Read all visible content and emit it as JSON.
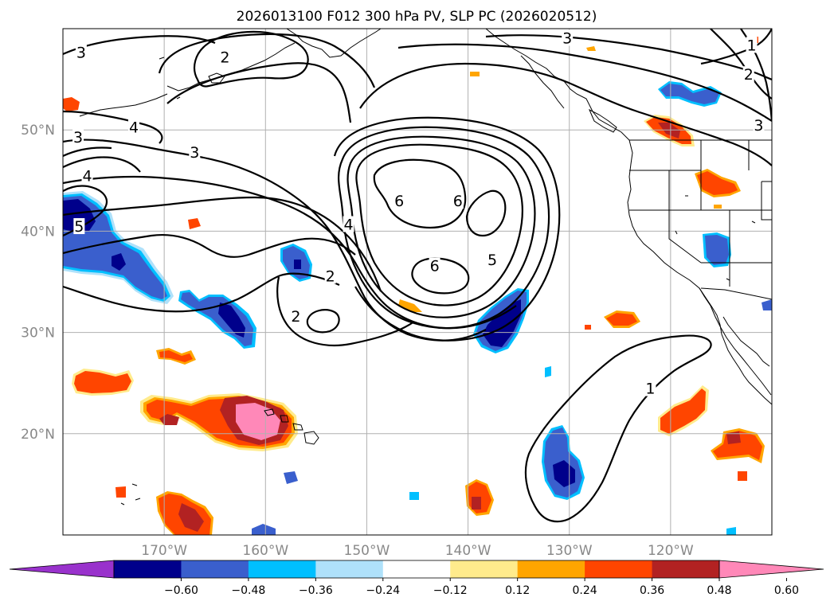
{
  "title": "2026013100 F012 300 hPa PV, SLP PC (2026020512)",
  "colors": {
    "frame": "#000000",
    "grid": "#b0b0b0",
    "coast": "#000000",
    "contour": "#000000",
    "axis_label": "#888888"
  },
  "chart_data": {
    "type": "map",
    "projection": "cylindrical",
    "lon_range": [
      -180,
      -110
    ],
    "lat_range": [
      10,
      60
    ],
    "lat_ticks": [
      {
        "lat": 50,
        "label": "50°N"
      },
      {
        "lat": 40,
        "label": "40°N"
      },
      {
        "lat": 30,
        "label": "30°N"
      },
      {
        "lat": 20,
        "label": "20°N"
      }
    ],
    "lon_ticks": [
      {
        "lon": -170,
        "label": "170°W"
      },
      {
        "lon": -160,
        "label": "160°W"
      },
      {
        "lon": -150,
        "label": "150°W"
      },
      {
        "lon": -140,
        "label": "140°W"
      },
      {
        "lon": -130,
        "label": "130°W"
      },
      {
        "lon": -120,
        "label": "120°W"
      }
    ],
    "colorbar": {
      "bins": [
        {
          "range": "< -0.60",
          "color": "#9932cc"
        },
        {
          "range": "-0.60 to -0.48",
          "color": "#00008b"
        },
        {
          "range": "-0.48 to -0.36",
          "color": "#3a5fcd"
        },
        {
          "range": "-0.36 to -0.24",
          "color": "#00bfff"
        },
        {
          "range": "-0.24 to -0.12",
          "color": "#afe1fa"
        },
        {
          "range": "-0.12 to 0.12",
          "color": "#ffffff"
        },
        {
          "range": "0.12 to 0.24",
          "color": "#ffeb8c"
        },
        {
          "range": "0.24 to 0.36",
          "color": "#ffa500"
        },
        {
          "range": "0.36 to 0.48",
          "color": "#ff4500"
        },
        {
          "range": "0.48 to 0.60",
          "color": "#b22222"
        },
        {
          "range": "> 0.60",
          "color": "#ff88b8"
        }
      ],
      "tick_labels": [
        "−0.60",
        "−0.48",
        "−0.36",
        "−0.24",
        "−0.12",
        "0.12",
        "0.24",
        "0.36",
        "0.48",
        "0.60"
      ]
    },
    "contour_labels": [
      {
        "text": "3",
        "lon": -178.2,
        "lat": 57.7
      },
      {
        "text": "2",
        "lon": -164.0,
        "lat": 57.2
      },
      {
        "text": "3",
        "lon": -130.2,
        "lat": 59.1
      },
      {
        "text": "1",
        "lon": -112.0,
        "lat": 58.4
      },
      {
        "text": "2",
        "lon": -112.3,
        "lat": 55.5
      },
      {
        "text": "3",
        "lon": -111.3,
        "lat": 50.5
      },
      {
        "text": "4",
        "lon": -173.0,
        "lat": 50.3
      },
      {
        "text": "3",
        "lon": -178.5,
        "lat": 49.3
      },
      {
        "text": "3",
        "lon": -167.0,
        "lat": 47.8
      },
      {
        "text": "4",
        "lon": -177.6,
        "lat": 45.5
      },
      {
        "text": "5",
        "lon": -178.4,
        "lat": 40.5
      },
      {
        "text": "6",
        "lon": -146.8,
        "lat": 43.0
      },
      {
        "text": "6",
        "lon": -141.0,
        "lat": 43.0
      },
      {
        "text": "4",
        "lon": -151.8,
        "lat": 40.7
      },
      {
        "text": "6",
        "lon": -143.3,
        "lat": 36.6
      },
      {
        "text": "5",
        "lon": -137.6,
        "lat": 37.2
      },
      {
        "text": "2",
        "lon": -153.6,
        "lat": 35.6
      },
      {
        "text": "2",
        "lon": -157.0,
        "lat": 31.6
      },
      {
        "text": "1",
        "lon": -122.0,
        "lat": 24.5
      }
    ]
  }
}
